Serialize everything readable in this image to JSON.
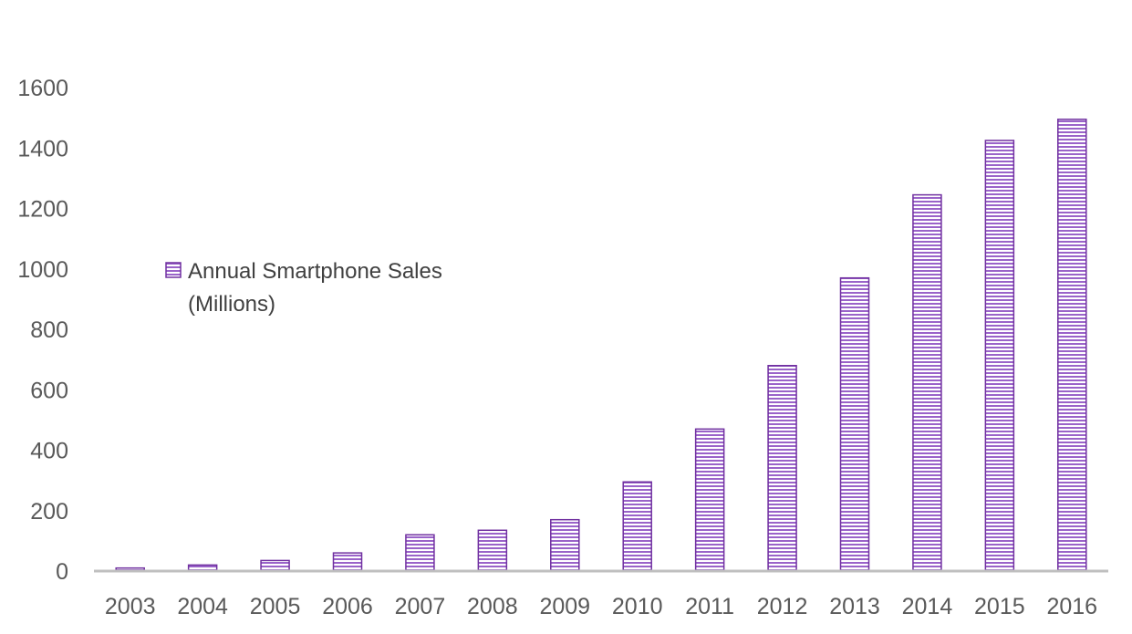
{
  "chart_data": {
    "type": "bar",
    "title": "",
    "xlabel": "",
    "ylabel": "",
    "categories": [
      "2003",
      "2004",
      "2005",
      "2006",
      "2007",
      "2008",
      "2009",
      "2010",
      "2011",
      "2012",
      "2013",
      "2014",
      "2015",
      "2016"
    ],
    "series": [
      {
        "name": "Annual Smartphone Sales (Millions)",
        "values": [
          10,
          20,
          35,
          60,
          120,
          135,
          170,
          295,
          470,
          680,
          970,
          1245,
          1425,
          1495
        ]
      }
    ],
    "ylim": [
      0,
      1600
    ],
    "yticks": [
      0,
      200,
      400,
      600,
      800,
      1000,
      1200,
      1400,
      1600
    ],
    "grid": false,
    "legend": {
      "placement": "left-middle",
      "label_line1": "Annual Smartphone Sales",
      "label_line2": "(Millions)"
    },
    "colors": {
      "bar_stroke": "#7030a0",
      "bar_stripe": "#9a63c9",
      "bar_fill": "#ffffff",
      "axis": "#bfbfbf",
      "tick_text": "#595959",
      "legend_text": "#404040"
    }
  }
}
